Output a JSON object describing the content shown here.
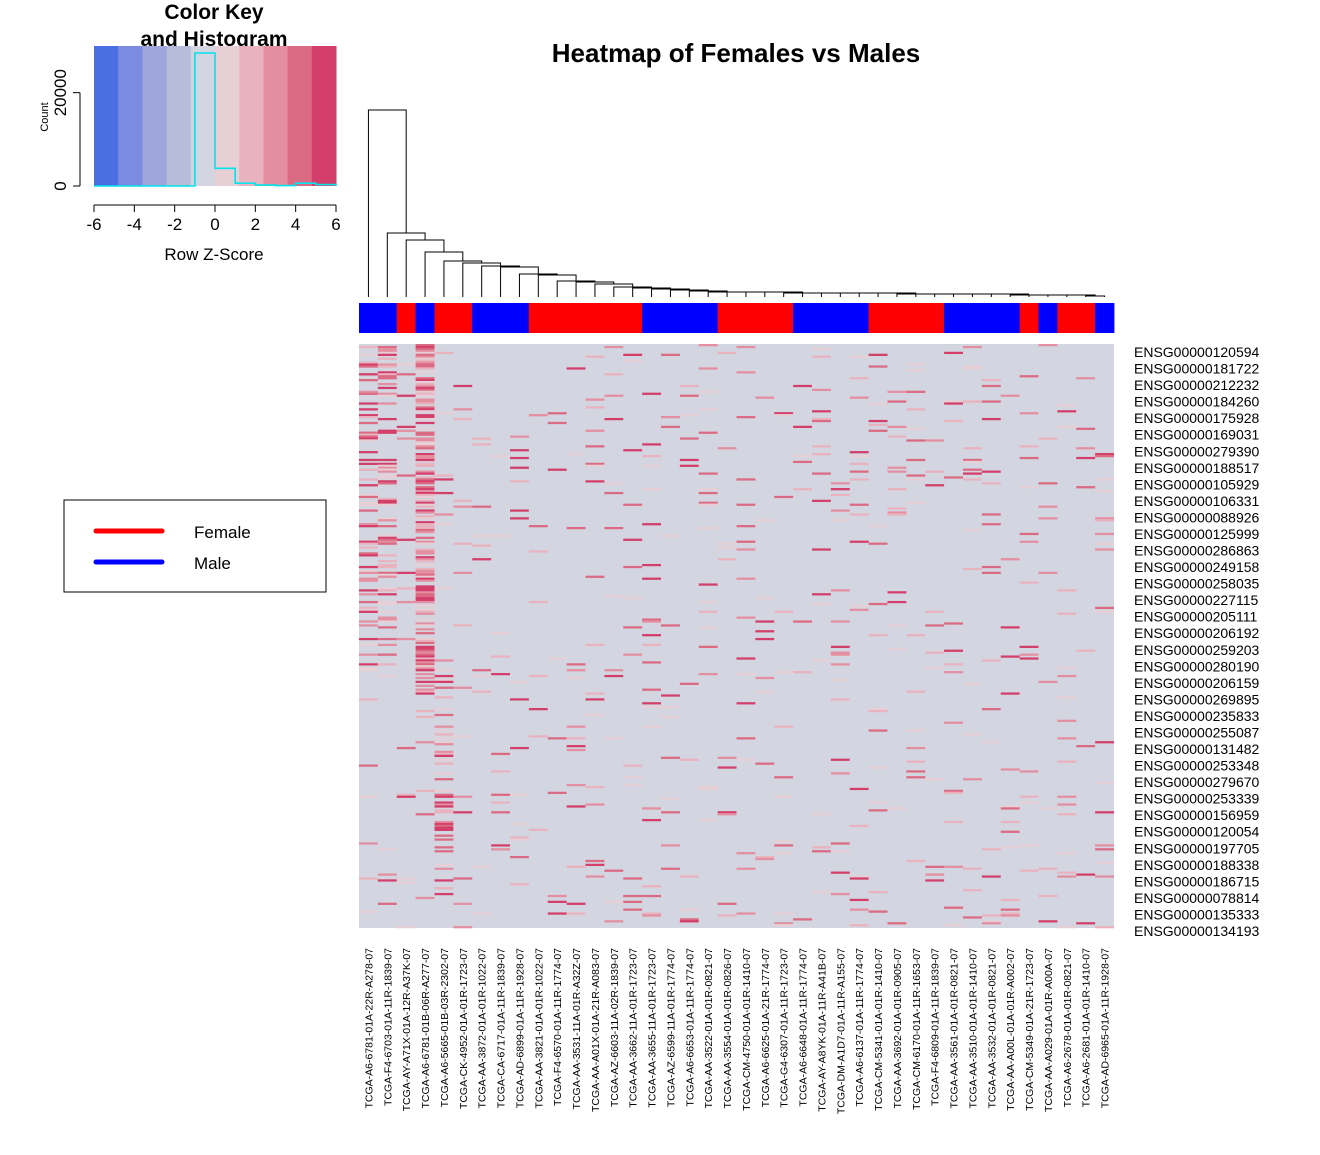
{
  "chart_data": {
    "type": "heatmap",
    "title": "Heatmap of Females vs Males",
    "color_key": {
      "title_line1": "Color Key",
      "title_line2": "and Histogram",
      "xlabel": "Row Z-Score",
      "ylabel": "Count",
      "x_ticks": [
        "-6",
        "-4",
        "-2",
        "0",
        "2",
        "4",
        "6"
      ],
      "y_ticks": [
        "0",
        "20000"
      ],
      "xlim": [
        -6,
        6
      ],
      "ylim": [
        0,
        30000
      ],
      "breaks": [
        -6,
        -5,
        -4,
        -3,
        -2,
        -1,
        0,
        1,
        2,
        3,
        4,
        5,
        6
      ],
      "colors": [
        "#4a6fe3",
        "#7a8be0",
        "#9ea6dc",
        "#b8bcdb",
        "#d3d5e0",
        "#e6cfd5",
        "#e8b3bf",
        "#e48fa1",
        "#db6a83",
        "#d33f6a"
      ],
      "histogram_counts": [
        0,
        0,
        0,
        0,
        0,
        28500,
        3800,
        600,
        200,
        100,
        600,
        300
      ],
      "histogram_color": "#00e5ee"
    },
    "legend": {
      "entries": [
        {
          "label": "Female",
          "color": "#ff0000"
        },
        {
          "label": "Male",
          "color": "#0000ff"
        }
      ]
    },
    "column_groups": [
      "Male",
      "Male",
      "Female",
      "Male",
      "Female",
      "Female",
      "Male",
      "Male",
      "Male",
      "Female",
      "Female",
      "Female",
      "Female",
      "Female",
      "Female",
      "Male",
      "Male",
      "Male",
      "Male",
      "Female",
      "Female",
      "Female",
      "Female",
      "Male",
      "Male",
      "Male",
      "Male",
      "Female",
      "Female",
      "Female",
      "Female",
      "Male",
      "Male",
      "Male",
      "Male",
      "Female",
      "Male",
      "Female",
      "Female",
      "Male"
    ],
    "samples": [
      "TCGA-A6-6781-01A-22R-A278-07",
      "TCGA-F4-6703-01A-11R-1839-07",
      "TCGA-AY-A71X-01A-12R-A37K-07",
      "TCGA-A6-6781-01B-06R-A277-07",
      "TCGA-A6-5665-01B-03R-2302-07",
      "TCGA-CK-4952-01A-01R-1723-07",
      "TCGA-AA-3872-01A-01R-1022-07",
      "TCGA-CA-6717-01A-11R-1839-07",
      "TCGA-AD-6899-01A-11R-1928-07",
      "TCGA-AA-3821-01A-01R-1022-07",
      "TCGA-F4-6570-01A-11R-1774-07",
      "TCGA-AA-3531-11A-01R-A32Z-07",
      "TCGA-AA-A01X-01A-21R-A083-07",
      "TCGA-AZ-6603-11A-02R-1839-07",
      "TCGA-AA-3662-11A-01R-1723-07",
      "TCGA-AA-3655-11A-01R-1723-07",
      "TCGA-AZ-6599-11A-01R-1774-07",
      "TCGA-A6-6653-01A-11R-1774-07",
      "TCGA-AA-3522-01A-01R-0821-07",
      "TCGA-AA-3554-01A-01R-0826-07",
      "TCGA-CM-4750-01A-01R-1410-07",
      "TCGA-A6-6625-01A-21R-1774-07",
      "TCGA-G4-6307-01A-11R-1723-07",
      "TCGA-A6-6648-01A-11R-1774-07",
      "TCGA-AY-A8YK-01A-11R-A41B-07",
      "TCGA-DM-A1D7-01A-11R-A155-07",
      "TCGA-A6-6137-01A-11R-1774-07",
      "TCGA-CM-5341-01A-01R-1410-07",
      "TCGA-AA-3692-01A-01R-0905-07",
      "TCGA-CM-6170-01A-11R-1653-07",
      "TCGA-F4-6809-01A-11R-1839-07",
      "TCGA-AA-3561-01A-01R-0821-07",
      "TCGA-AA-3510-01A-01R-1410-07",
      "TCGA-AA-3532-01A-01R-0821-07",
      "TCGA-AA-A00L-01A-01R-A002-07",
      "TCGA-CM-5349-01A-21R-1723-07",
      "TCGA-AA-A029-01A-01R-A00A-07",
      "TCGA-A6-2678-01A-01R-0821-07",
      "TCGA-A6-2681-01A-01R-1410-07",
      "TCGA-AD-6965-01A-11R-1928-07"
    ],
    "genes": [
      "ENSG00000120594",
      "ENSG00000181722",
      "ENSG00000212232",
      "ENSG00000184260",
      "ENSG00000175928",
      "ENSG00000169031",
      "ENSG00000279390",
      "ENSG00000188517",
      "ENSG00000105929",
      "ENSG00000106331",
      "ENSG00000088926",
      "ENSG00000125999",
      "ENSG00000286863",
      "ENSG00000249158",
      "ENSG00000258035",
      "ENSG00000227115",
      "ENSG00000205111",
      "ENSG00000206192",
      "ENSG00000259203",
      "ENSG00000280190",
      "ENSG00000206159",
      "ENSG00000269895",
      "ENSG00000235833",
      "ENSG00000255087",
      "ENSG00000131482",
      "ENSG00000253348",
      "ENSG00000279670",
      "ENSG00000253339",
      "ENSG00000156959",
      "ENSG00000120054",
      "ENSG00000197705",
      "ENSG00000188338",
      "ENSG00000186715",
      "ENSG00000078814",
      "ENSG00000135333",
      "ENSG00000134193"
    ]
  }
}
